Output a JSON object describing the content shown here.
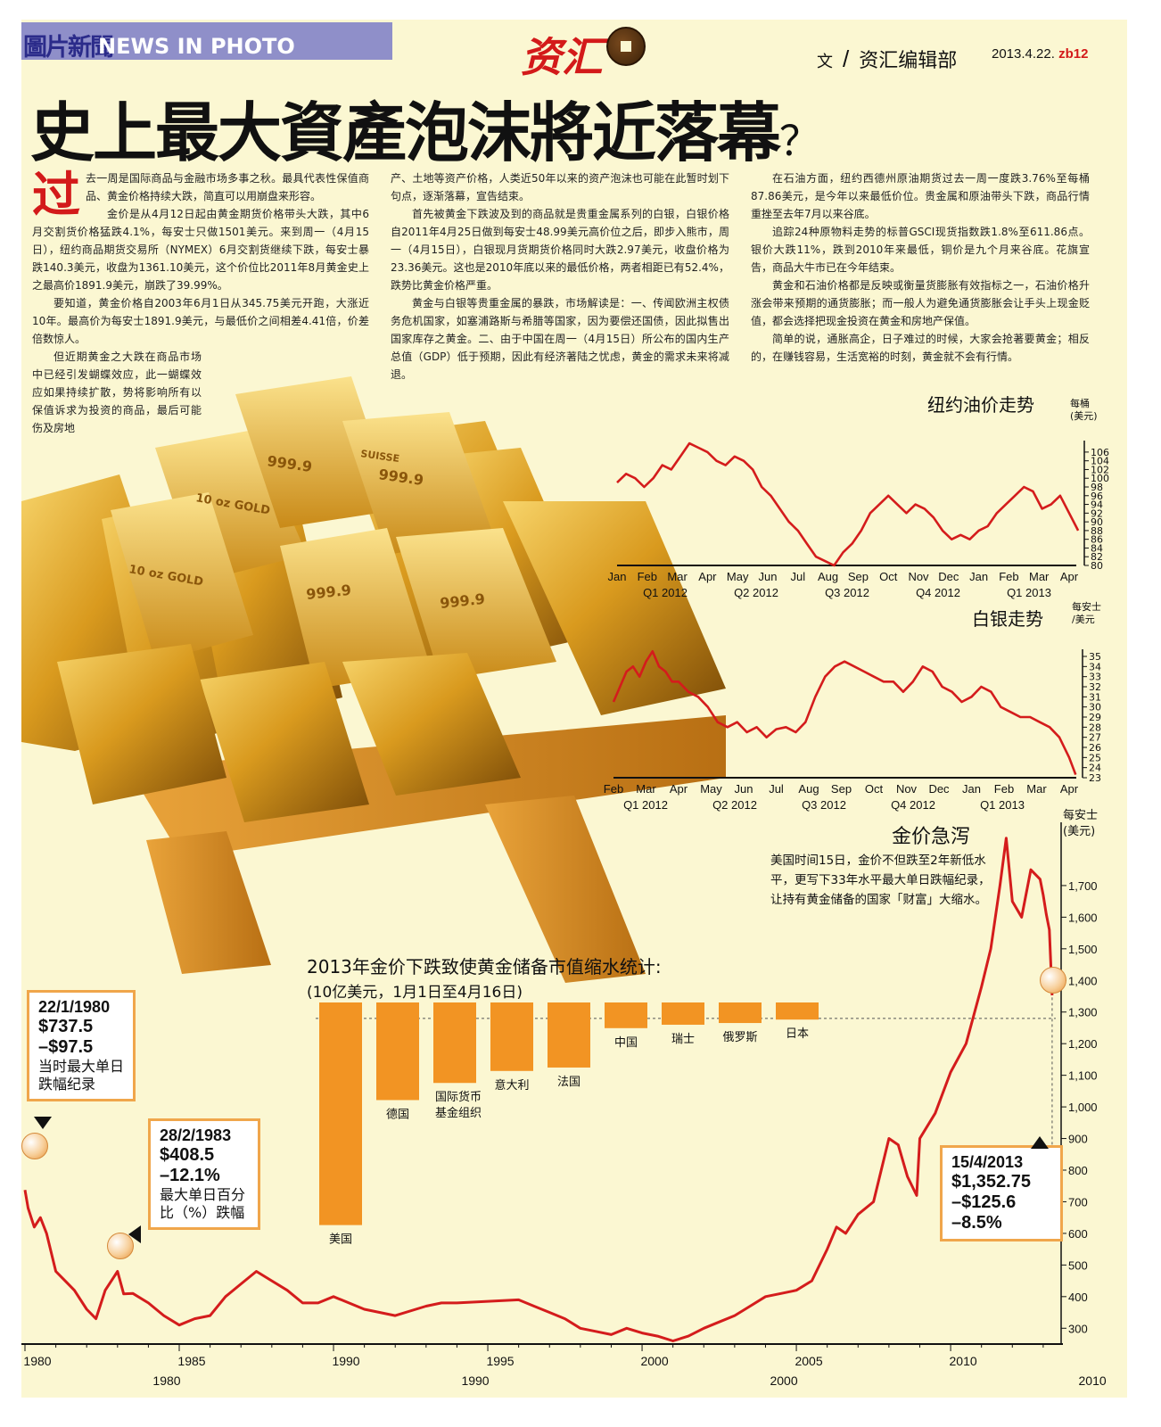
{
  "header": {
    "section_cn": "圖片新聞",
    "section_en": "NEWS IN PHOTO",
    "logo_text": "资汇",
    "byline_prefix": "文",
    "byline_sep": "/",
    "byline_dept": "资汇编辑部",
    "date": "2013.4.22.",
    "page_no": "zb12"
  },
  "headline": {
    "main": "史上最大資產泡沫將近落幕",
    "mark": "？"
  },
  "article": {
    "dropcap": "过",
    "col1": [
      "去一周是国际商品与金融市场多事之秋。最具代表性保值商品、黄金价格持续大跌，简直可以用崩盘来形容。",
      "金价是从4月12日起由黄金期货价格带头大跌，其中6月交割货价格猛跌4.1%，每安士只做1501美元。来到周一（4月15日），纽约商品期货交易所（NYMEX）6月交割货继续下跌，每安士暴跌140.3美元，收盘为1361.10美元，这个价位比2011年8月黄金史上之最高价1891.9美元，崩跌了39.99%。",
      "要知道，黄金价格自2003年6月1日从345.75美元开跑，大涨近10年。最高价为每安士1891.9美元，与最低价之间相差4.41倍，价差倍数惊人。",
      "但近期黄金之大跌在商品市场中已经引发蝴蝶效应，此一蝴蝶效应如果持续扩散，势将影响所有以保值诉求为投资的商品，最后可能伤及房地"
    ],
    "col2": [
      "产、土地等资产价格，人类近50年以来的资产泡沫也可能在此暂时划下句点，逐渐落幕，宣告结束。",
      "首先被黄金下跌波及到的商品就是贵重金属系列的白银，白银价格自2011年4月25日做到每安士48.99美元高价位之后，即步入熊市，周一（4月15日），白银现月货期货价格同时大跌2.97美元，收盘价格为23.36美元。这也是2010年底以来的最低价格，两者相距已有52.4%，跌势比黄金价格严重。",
      "黄金与白银等贵重金属的暴跌，市场解读是：一、传闻欧洲主权债务危机国家，如塞浦路斯与希腊等国家，因为要偿还国债，因此拟售出国家库存之黄金。二、由于中国在周一（4月15日）所公布的国内生产总值（GDP）低于预期，因此有经济著陆之忧虑，黄金的需求未来将减退。"
    ],
    "col3": [
      "在石油方面，纽约西德州原油期货过去一周一度跌3.76%至每桶87.86美元，是今年以来最低价位。贵金属和原油带头下跌，商品行情重挫至去年7月以来谷底。",
      "追踪24种原物料走势的标普GSCI现货指数跌1.8%至611.86点。银价大跌11%，跌到2010年来最低，铜价是九个月来谷底。花旗宣告，商品大牛市已在今年结束。",
      "黄金和石油价格都是反映或衡量货膨胀有效指标之一，石油价格升涨会带来预期的通货膨胀；而一般人为避免通货膨胀会让手头上现金贬值，都会选择把现金投资在黄金和房地产保值。",
      "简单的说，通胀高企，日子难过的时候，大家会抢著要黄金；相反的，在赚钱容易，生活宽裕的时刻，黄金就不会有行情。"
    ]
  },
  "bar_labels": [
    "999.9",
    "999.9",
    "999.9",
    "999.9",
    "10 oz GOLD",
    "10 oz GOLD",
    "SUISSE"
  ],
  "chart_data": [
    {
      "type": "line",
      "title": "纽约油价走势",
      "ylabel": "每桶 (美元)",
      "ylim": [
        80,
        107
      ],
      "yticks": [
        80,
        82,
        84,
        86,
        88,
        90,
        92,
        94,
        96,
        98,
        100,
        102,
        104,
        106
      ],
      "xticks": [
        "Jan",
        "Feb",
        "Mar",
        "Apr",
        "May",
        "Jun",
        "Jul",
        "Aug",
        "Sep",
        "Oct",
        "Nov",
        "Dec",
        "Jan",
        "Feb",
        "Mar",
        "Apr"
      ],
      "quarters": [
        "Q1 2012",
        "Q2 2012",
        "Q3 2012",
        "Q4 2012",
        "Q1 2013"
      ],
      "color": "#d41c1c",
      "x": [
        0,
        0.3,
        0.6,
        0.9,
        1.2,
        1.5,
        1.8,
        2.1,
        2.4,
        2.7,
        3.0,
        3.3,
        3.6,
        3.9,
        4.2,
        4.5,
        4.8,
        5.1,
        5.4,
        5.7,
        6.0,
        6.3,
        6.6,
        6.9,
        7.2,
        7.5,
        7.8,
        8.1,
        8.4,
        8.7,
        9.0,
        9.3,
        9.6,
        9.9,
        10.2,
        10.5,
        10.8,
        11.1,
        11.4,
        11.7,
        12.0,
        12.3,
        12.6,
        12.9,
        13.2,
        13.5,
        13.8,
        14.1,
        14.4,
        14.7,
        15.0,
        15.3
      ],
      "values": [
        99,
        101,
        100,
        98,
        100,
        103,
        102,
        105,
        108,
        107,
        106,
        104,
        103,
        105,
        104,
        102,
        98,
        96,
        93,
        90,
        88,
        85,
        82,
        81,
        80,
        83,
        85,
        88,
        92,
        94,
        96,
        94,
        92,
        94,
        93,
        91,
        88,
        86,
        87,
        86,
        88,
        89,
        92,
        94,
        96,
        98,
        97,
        93,
        94,
        96,
        92,
        88
      ]
    },
    {
      "type": "line",
      "title": "白银走势",
      "ylabel": "每安士 /美元",
      "ylim": [
        23,
        35
      ],
      "yticks": [
        23,
        24,
        25,
        26,
        27,
        28,
        29,
        30,
        31,
        32,
        33,
        34,
        35
      ],
      "xticks": [
        "Feb",
        "Mar",
        "Apr",
        "May",
        "Jun",
        "Jul",
        "Aug",
        "Sep",
        "Oct",
        "Nov",
        "Dec",
        "Jan",
        "Feb",
        "Mar",
        "Apr"
      ],
      "quarters": [
        "Q1 2012",
        "Q2 2012",
        "Q3 2012",
        "Q4 2012",
        "Q1 2013"
      ],
      "color": "#d41c1c",
      "x": [
        0,
        0.2,
        0.4,
        0.6,
        0.8,
        1.0,
        1.2,
        1.4,
        1.6,
        1.8,
        2.0,
        2.3,
        2.6,
        2.9,
        3.2,
        3.5,
        3.8,
        4.1,
        4.4,
        4.7,
        5.0,
        5.3,
        5.6,
        5.9,
        6.2,
        6.5,
        6.8,
        7.1,
        7.4,
        7.7,
        8.0,
        8.3,
        8.6,
        8.9,
        9.2,
        9.5,
        9.8,
        10.1,
        10.4,
        10.7,
        11.0,
        11.3,
        11.6,
        11.9,
        12.2,
        12.5,
        12.8,
        13.1,
        13.4,
        13.7,
        14.0,
        14.2
      ],
      "values": [
        30.5,
        32,
        33.5,
        34,
        33,
        34.5,
        35.5,
        34,
        33.5,
        32.5,
        32.5,
        31.5,
        31,
        30,
        28.5,
        28,
        28.5,
        27.5,
        28,
        27,
        27.8,
        28,
        27.5,
        28.5,
        31,
        33,
        34,
        34.5,
        34,
        33.5,
        33,
        32.5,
        32.5,
        31.5,
        32.5,
        34,
        33.5,
        32,
        31.5,
        30.5,
        31,
        32,
        31.5,
        30,
        29.5,
        29,
        29,
        28.5,
        28,
        27,
        25,
        23.3
      ]
    },
    {
      "type": "line",
      "title": "金价急泻",
      "ylabel": "每安士 (美元)",
      "ylim": [
        250,
        1900
      ],
      "yticks": [
        300,
        400,
        500,
        600,
        700,
        800,
        900,
        1000,
        1100,
        1200,
        1300,
        1400,
        1500,
        1600,
        1700
      ],
      "xticks": [
        1980,
        1985,
        1990,
        1995,
        2000,
        2005,
        2010
      ],
      "decades": [
        "1980",
        "1990",
        "2000",
        "2010"
      ],
      "color": "#d41c1c",
      "x": [
        1980,
        1980.1,
        1980.3,
        1980.5,
        1980.7,
        1981,
        1981.3,
        1981.6,
        1982,
        1982.3,
        1982.6,
        1983,
        1983.2,
        1983.5,
        1984,
        1984.5,
        1985,
        1985.5,
        1986,
        1986.5,
        1987,
        1987.5,
        1988,
        1988.5,
        1989,
        1989.5,
        1990,
        1990.5,
        1991,
        1992,
        1993,
        1993.5,
        1994,
        1995,
        1996,
        1996.5,
        1997,
        1997.5,
        1998,
        1998.5,
        1999,
        1999.5,
        2000,
        2000.5,
        2001,
        2001.5,
        2002,
        2002.5,
        2003,
        2003.5,
        2004,
        2004.5,
        2005,
        2005.5,
        2006,
        2006.3,
        2006.6,
        2007,
        2007.5,
        2008,
        2008.3,
        2008.6,
        2008.9,
        2009,
        2009.5,
        2010,
        2010.5,
        2011,
        2011.3,
        2011.6,
        2011.8,
        2012,
        2012.3,
        2012.6,
        2012.9,
        2013,
        2013.1,
        2013.2,
        2013.29
      ],
      "values": [
        737.5,
        680,
        620,
        650,
        600,
        480,
        450,
        420,
        360,
        330,
        420,
        480,
        408.5,
        410,
        380,
        340,
        310,
        330,
        340,
        400,
        440,
        480,
        450,
        420,
        380,
        380,
        400,
        380,
        360,
        340,
        370,
        380,
        380,
        385,
        390,
        370,
        350,
        330,
        300,
        290,
        280,
        300,
        285,
        275,
        260,
        275,
        300,
        320,
        340,
        370,
        400,
        410,
        420,
        450,
        550,
        620,
        600,
        660,
        700,
        900,
        880,
        780,
        720,
        900,
        980,
        1110,
        1200,
        1380,
        1500,
        1700,
        1850,
        1650,
        1600,
        1750,
        1720,
        1670,
        1610,
        1560,
        1352.75
      ]
    },
    {
      "type": "bar",
      "title": "2013年金价下跌致使黄金储备市值缩水统计:",
      "subtitle": "(10亿美元，1月1日至4月16日)",
      "categories": [
        "美国",
        "德国",
        "国际货币基金组织",
        "意大利",
        "法国",
        "中国",
        "瑞士",
        "俄罗斯",
        "日本"
      ],
      "values": [
        -130,
        -57,
        -47,
        -40,
        -38,
        -15,
        -13,
        -12,
        -10
      ],
      "color": "#f29423"
    }
  ],
  "notes": {
    "gold_crash_desc": "美国时间15日，金价不但跌至2年新低水平，更写下33年水平最大单日跌幅纪录，让持有黄金储备的国家「财富」大缩水。"
  },
  "callouts": [
    {
      "date": "22/1/1980",
      "price": "$737.5",
      "change": "–$97.5",
      "note": "当时最大单日跌幅纪录"
    },
    {
      "date": "28/2/1983",
      "price": "$408.5",
      "change": "–12.1%",
      "note": "最大单日百分比（%）跌幅"
    },
    {
      "date": "15/4/2013",
      "price": "$1,352.75",
      "change": "–$125.6",
      "change2": "–8.5%"
    }
  ],
  "colors": {
    "accent_red": "#d41c1c",
    "bar_orange": "#f29423",
    "paper": "#fbf7d2",
    "header_band": "#8f8fc9"
  }
}
